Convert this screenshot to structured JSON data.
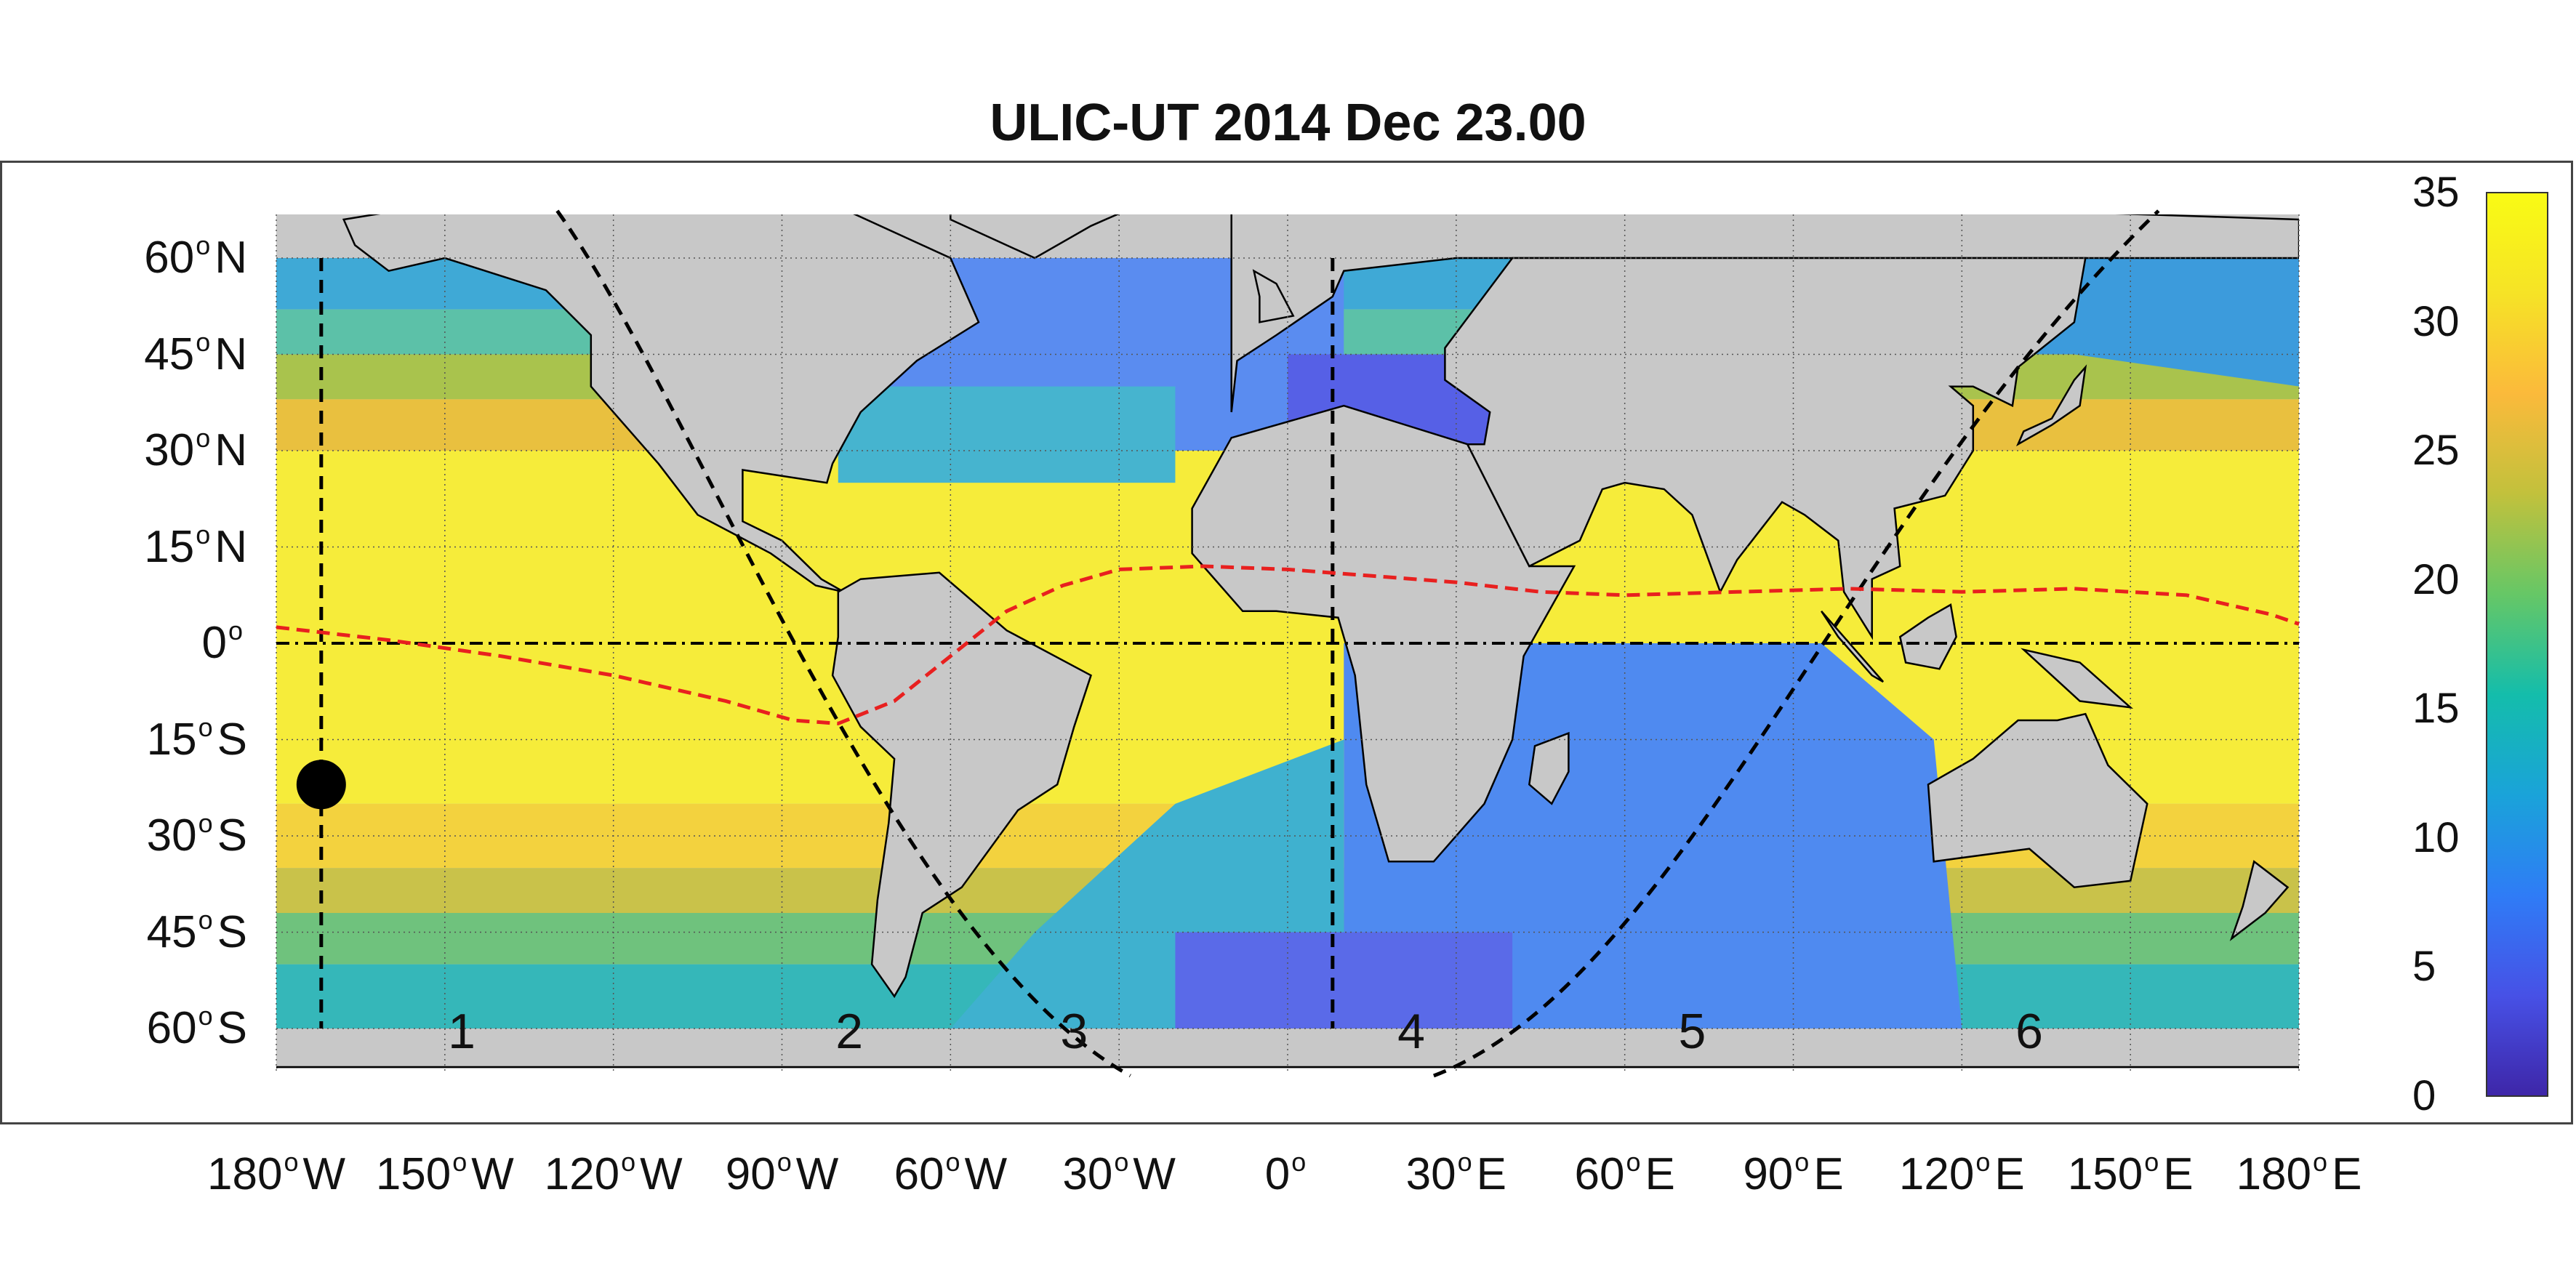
{
  "title": "ULIC-UT 2014 Dec 23.00",
  "y_ticks": [
    {
      "lat": 60,
      "num": "60",
      "hemi": "N"
    },
    {
      "lat": 45,
      "num": "45",
      "hemi": "N"
    },
    {
      "lat": 30,
      "num": "30",
      "hemi": "N"
    },
    {
      "lat": 15,
      "num": "15",
      "hemi": "N"
    },
    {
      "lat": 0,
      "num": "0",
      "hemi": ""
    },
    {
      "lat": -15,
      "num": "15",
      "hemi": "S"
    },
    {
      "lat": -30,
      "num": "30",
      "hemi": "S"
    },
    {
      "lat": -45,
      "num": "45",
      "hemi": "S"
    },
    {
      "lat": -60,
      "num": "60",
      "hemi": "S"
    }
  ],
  "x_ticks": [
    {
      "lon": -180,
      "num": "180",
      "hemi": "W"
    },
    {
      "lon": -150,
      "num": "150",
      "hemi": "W"
    },
    {
      "lon": -120,
      "num": "120",
      "hemi": "W"
    },
    {
      "lon": -90,
      "num": "90",
      "hemi": "W"
    },
    {
      "lon": -60,
      "num": "60",
      "hemi": "W"
    },
    {
      "lon": -30,
      "num": "30",
      "hemi": "W"
    },
    {
      "lon": 0,
      "num": "0",
      "hemi": ""
    },
    {
      "lon": 30,
      "num": "30",
      "hemi": "E"
    },
    {
      "lon": 60,
      "num": "60",
      "hemi": "E"
    },
    {
      "lon": 90,
      "num": "90",
      "hemi": "E"
    },
    {
      "lon": 120,
      "num": "120",
      "hemi": "E"
    },
    {
      "lon": 150,
      "num": "150",
      "hemi": "E"
    },
    {
      "lon": 180,
      "num": "180",
      "hemi": "E"
    }
  ],
  "region_labels": [
    {
      "text": "1",
      "lon": -147
    },
    {
      "text": "2",
      "lon": -78
    },
    {
      "text": "3",
      "lon": -38
    },
    {
      "text": "4",
      "lon": 22
    },
    {
      "text": "5",
      "lon": 72
    },
    {
      "text": "6",
      "lon": 132
    }
  ],
  "colorbar": {
    "min": 0,
    "max": 35,
    "ticks": [
      "0",
      "5",
      "10",
      "15",
      "20",
      "25",
      "30",
      "35"
    ],
    "colors": [
      "#3e26a8",
      "#4751e6",
      "#2f7cf6",
      "#1aa3d9",
      "#14bdab",
      "#66c766",
      "#c2c13c",
      "#fbba3b",
      "#f6e326",
      "#f9fb14"
    ]
  },
  "map": {
    "land_color": "#c8c8c8",
    "marker_lon": -172,
    "marker_lat": -22,
    "meridian_lines_lon": [
      -172,
      8
    ],
    "itcz_color": "#e8201f",
    "itcz_path_lonlat": [
      [
        -180,
        2.5
      ],
      [
        -160,
        0.5
      ],
      [
        -140,
        -2
      ],
      [
        -120,
        -5
      ],
      [
        -100,
        -9
      ],
      [
        -88,
        -12
      ],
      [
        -80,
        -12.5
      ],
      [
        -70,
        -9
      ],
      [
        -60,
        -2
      ],
      [
        -50,
        5
      ],
      [
        -40,
        9
      ],
      [
        -30,
        11.5
      ],
      [
        -15,
        12
      ],
      [
        0,
        11.5
      ],
      [
        15,
        10.5
      ],
      [
        30,
        9.5
      ],
      [
        45,
        8
      ],
      [
        60,
        7.5
      ],
      [
        80,
        8
      ],
      [
        100,
        8.5
      ],
      [
        120,
        8
      ],
      [
        140,
        8.5
      ],
      [
        160,
        7.5
      ],
      [
        175,
        4.5
      ],
      [
        180,
        3
      ]
    ]
  }
}
